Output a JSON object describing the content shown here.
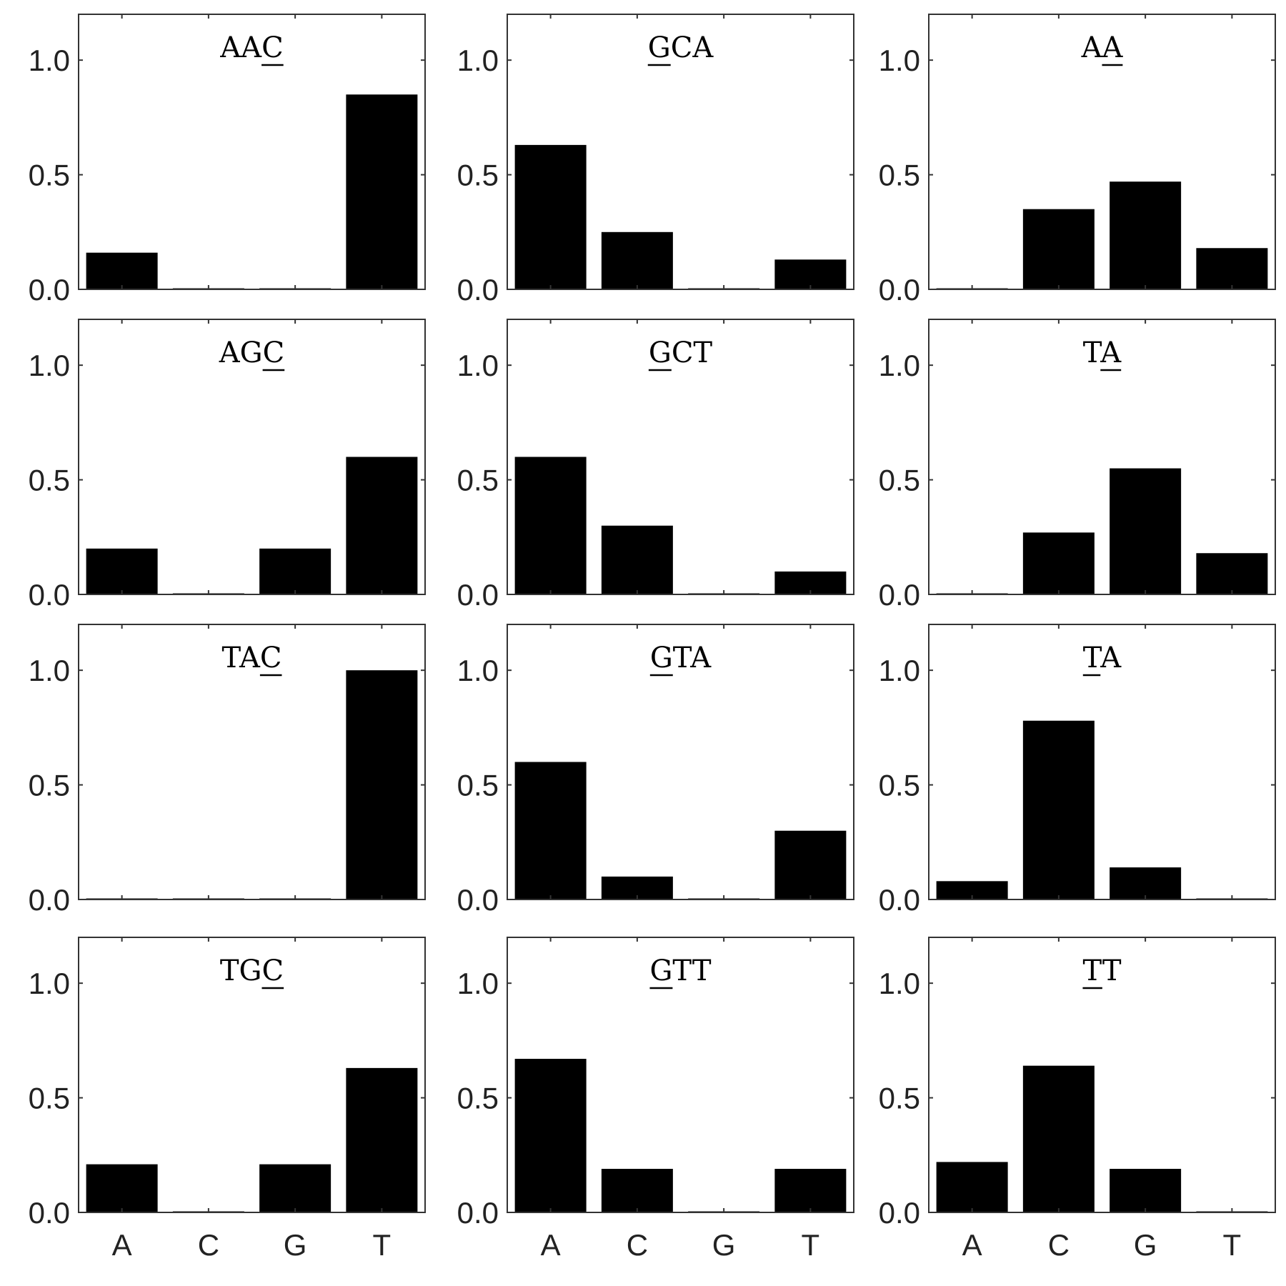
{
  "chart_data": [
    {
      "type": "bar",
      "title": {
        "text": "AAC",
        "underline": 2
      },
      "categories": [
        "A",
        "C",
        "G",
        "T"
      ],
      "values": [
        0.16,
        0.0,
        0.0,
        0.85
      ],
      "ylim": [
        0,
        1.2
      ],
      "yticks": [
        0.0,
        0.5,
        1.0
      ],
      "ytick_labels": [
        "0.0",
        "0.5",
        "1.0"
      ],
      "xtick_labels": [
        "A",
        "C",
        "G",
        "T"
      ]
    },
    {
      "type": "bar",
      "title": {
        "text": "GCA",
        "underline": 0
      },
      "categories": [
        "A",
        "C",
        "G",
        "T"
      ],
      "values": [
        0.63,
        0.25,
        0.0,
        0.13
      ],
      "ylim": [
        0,
        1.2
      ],
      "yticks": [
        0.0,
        0.5,
        1.0
      ],
      "ytick_labels": [
        "0.0",
        "0.5",
        "1.0"
      ],
      "xtick_labels": [
        "A",
        "C",
        "G",
        "T"
      ]
    },
    {
      "type": "bar",
      "title": {
        "text": "AA",
        "underline": 1
      },
      "categories": [
        "A",
        "C",
        "G",
        "T"
      ],
      "values": [
        0.0,
        0.35,
        0.47,
        0.18
      ],
      "ylim": [
        0,
        1.2
      ],
      "yticks": [
        0.0,
        0.5,
        1.0
      ],
      "ytick_labels": [
        "0.0",
        "0.5",
        "1.0"
      ],
      "xtick_labels": [
        "A",
        "C",
        "G",
        "T"
      ]
    },
    {
      "type": "bar",
      "title": {
        "text": "AGC",
        "underline": 2
      },
      "categories": [
        "A",
        "C",
        "G",
        "T"
      ],
      "values": [
        0.2,
        0.0,
        0.2,
        0.6
      ],
      "ylim": [
        0,
        1.2
      ],
      "yticks": [
        0.0,
        0.5,
        1.0
      ],
      "ytick_labels": [
        "0.0",
        "0.5",
        "1.0"
      ],
      "xtick_labels": [
        "A",
        "C",
        "G",
        "T"
      ]
    },
    {
      "type": "bar",
      "title": {
        "text": "GCT",
        "underline": 0
      },
      "categories": [
        "A",
        "C",
        "G",
        "T"
      ],
      "values": [
        0.6,
        0.3,
        0.0,
        0.1
      ],
      "ylim": [
        0,
        1.2
      ],
      "yticks": [
        0.0,
        0.5,
        1.0
      ],
      "ytick_labels": [
        "0.0",
        "0.5",
        "1.0"
      ],
      "xtick_labels": [
        "A",
        "C",
        "G",
        "T"
      ]
    },
    {
      "type": "bar",
      "title": {
        "text": "TA",
        "underline": 1
      },
      "categories": [
        "A",
        "C",
        "G",
        "T"
      ],
      "values": [
        0.0,
        0.27,
        0.55,
        0.18
      ],
      "ylim": [
        0,
        1.2
      ],
      "yticks": [
        0.0,
        0.5,
        1.0
      ],
      "ytick_labels": [
        "0.0",
        "0.5",
        "1.0"
      ],
      "xtick_labels": [
        "A",
        "C",
        "G",
        "T"
      ]
    },
    {
      "type": "bar",
      "title": {
        "text": "TAC",
        "underline": 2
      },
      "categories": [
        "A",
        "C",
        "G",
        "T"
      ],
      "values": [
        0.0,
        0.0,
        0.0,
        1.0
      ],
      "ylim": [
        0,
        1.2
      ],
      "yticks": [
        0.0,
        0.5,
        1.0
      ],
      "ytick_labels": [
        "0.0",
        "0.5",
        "1.0"
      ],
      "xtick_labels": [
        "A",
        "C",
        "G",
        "T"
      ]
    },
    {
      "type": "bar",
      "title": {
        "text": "GTA",
        "underline": 0
      },
      "categories": [
        "A",
        "C",
        "G",
        "T"
      ],
      "values": [
        0.6,
        0.1,
        0.0,
        0.3
      ],
      "ylim": [
        0,
        1.2
      ],
      "yticks": [
        0.0,
        0.5,
        1.0
      ],
      "ytick_labels": [
        "0.0",
        "0.5",
        "1.0"
      ],
      "xtick_labels": [
        "A",
        "C",
        "G",
        "T"
      ]
    },
    {
      "type": "bar",
      "title": {
        "text": "TA",
        "underline": 0
      },
      "categories": [
        "A",
        "C",
        "G",
        "T"
      ],
      "values": [
        0.08,
        0.78,
        0.14,
        0.0
      ],
      "ylim": [
        0,
        1.2
      ],
      "yticks": [
        0.0,
        0.5,
        1.0
      ],
      "ytick_labels": [
        "0.0",
        "0.5",
        "1.0"
      ],
      "xtick_labels": [
        "A",
        "C",
        "G",
        "T"
      ]
    },
    {
      "type": "bar",
      "title": {
        "text": "TGC",
        "underline": 2
      },
      "categories": [
        "A",
        "C",
        "G",
        "T"
      ],
      "values": [
        0.21,
        0.0,
        0.21,
        0.63
      ],
      "ylim": [
        0,
        1.2
      ],
      "yticks": [
        0.0,
        0.5,
        1.0
      ],
      "ytick_labels": [
        "0.0",
        "0.5",
        "1.0"
      ],
      "xtick_labels": [
        "A",
        "C",
        "G",
        "T"
      ]
    },
    {
      "type": "bar",
      "title": {
        "text": "GTT",
        "underline": 0
      },
      "categories": [
        "A",
        "C",
        "G",
        "T"
      ],
      "values": [
        0.67,
        0.19,
        0.0,
        0.19
      ],
      "ylim": [
        0,
        1.2
      ],
      "yticks": [
        0.0,
        0.5,
        1.0
      ],
      "ytick_labels": [
        "0.0",
        "0.5",
        "1.0"
      ],
      "xtick_labels": [
        "A",
        "C",
        "G",
        "T"
      ]
    },
    {
      "type": "bar",
      "title": {
        "text": "TT",
        "underline": 0
      },
      "categories": [
        "A",
        "C",
        "G",
        "T"
      ],
      "values": [
        0.22,
        0.64,
        0.19,
        0.0
      ],
      "ylim": [
        0,
        1.2
      ],
      "yticks": [
        0.0,
        0.5,
        1.0
      ],
      "ytick_labels": [
        "0.0",
        "0.5",
        "1.0"
      ],
      "xtick_labels": [
        "A",
        "C",
        "G",
        "T"
      ]
    }
  ],
  "layout_grid": {
    "rows": 4,
    "cols": 3,
    "xtick_labels_on_bottom_row_only": true
  },
  "colors": {
    "bar": "#000000",
    "axis": "#333333",
    "text": "#222222",
    "background": "#ffffff"
  }
}
